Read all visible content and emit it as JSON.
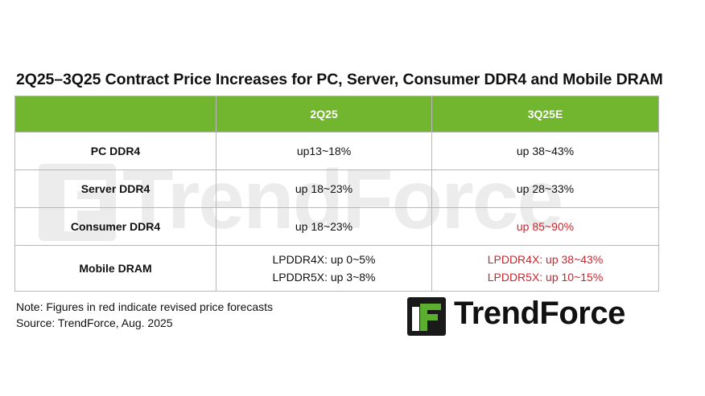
{
  "title": "2Q25–3Q25 Contract Price Increases for PC, Server, Consumer DDR4 and Mobile DRAM",
  "table": {
    "headers": [
      "",
      "2Q25",
      "3Q25E"
    ],
    "rows": [
      {
        "label": "PC DDR4",
        "q2": [
          "up13~18%"
        ],
        "q3": [
          "up 38~43%"
        ],
        "q3_revised": false
      },
      {
        "label": "Server DDR4",
        "q2": [
          "up 18~23%"
        ],
        "q3": [
          "up 28~33%"
        ],
        "q3_revised": false
      },
      {
        "label": "Consumer DDR4",
        "q2": [
          "up 18~23%"
        ],
        "q3": [
          "up 85~90%"
        ],
        "q3_revised": true
      },
      {
        "label": "Mobile DRAM",
        "q2": [
          "LPDDR4X: up 0~5%",
          "LPDDR5X: up 3~8%"
        ],
        "q3": [
          "LPDDR4X: up 38~43%",
          "LPDDR5X: up 10~15%"
        ],
        "q3_revised": true
      }
    ]
  },
  "notes": {
    "note": "Note: Figures in red indicate revised price forecasts",
    "source": "Source: TrendForce, Aug. 2025"
  },
  "logo": {
    "text": "TrendForce",
    "icon": "trendforce-logo-icon"
  },
  "watermark": {
    "text": "TrendForce"
  },
  "colors": {
    "header_bg": "#72b52e",
    "header_text": "#ffffff",
    "revised_text": "#d0242c",
    "border": "#b8b8b8",
    "logo_green": "#5cae2e"
  }
}
